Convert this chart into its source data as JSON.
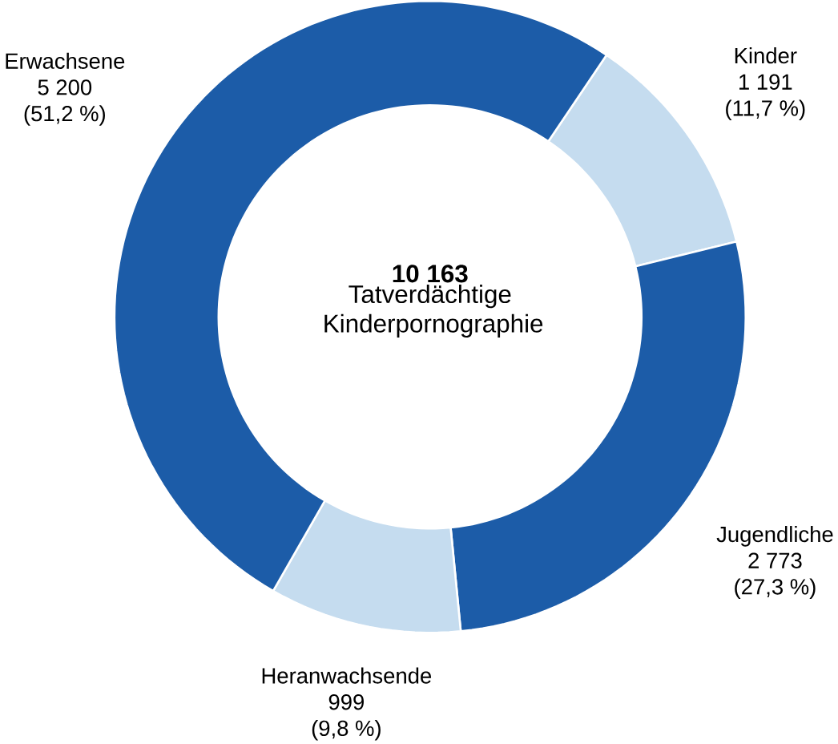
{
  "chart_data": {
    "type": "donut",
    "title": "10 163",
    "subtitle": "Tatverdächtige Kinderpornographie",
    "categories": [
      "Kinder",
      "Jugendliche",
      "Heranwachsende",
      "Erwachsene"
    ],
    "values": [
      1191,
      2773,
      999,
      5200
    ],
    "value_labels": [
      "1 191",
      "2 773",
      "999",
      "5 200"
    ],
    "annotations": [
      "(11,7 %)",
      "(27,3 %)",
      "(9,8 %)",
      "(51,2 %)"
    ],
    "colors": [
      "#c5dcef",
      "#1c5ca8",
      "#c5dcef",
      "#1c5ca8"
    ]
  }
}
